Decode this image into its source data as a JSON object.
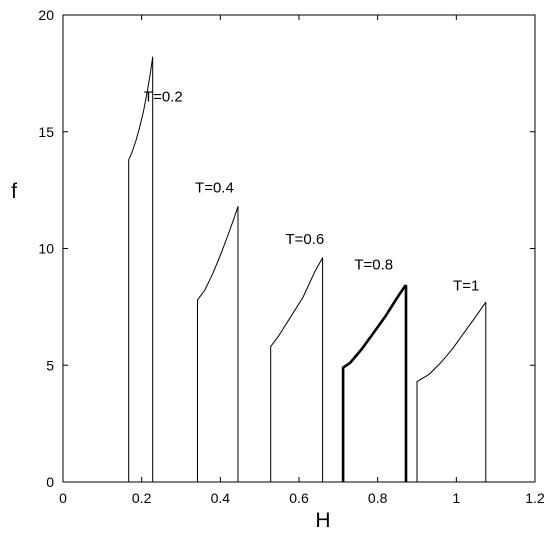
{
  "chart_data": {
    "type": "line",
    "xlabel": "H",
    "ylabel": "f",
    "xlim": [
      0,
      1.2
    ],
    "ylim": [
      0,
      20
    ],
    "xticks": [
      0,
      0.2,
      0.4,
      0.6,
      0.8,
      1,
      1.2
    ],
    "yticks": [
      0,
      5,
      10,
      15,
      20
    ],
    "xtick_labels": [
      "0",
      "0.2",
      "0.4",
      "0.6",
      "0.8",
      "1",
      "1.2"
    ],
    "ytick_labels": [
      "0",
      "5",
      "10",
      "15",
      "20"
    ],
    "grid": false,
    "series": [
      {
        "name": "T=0.2",
        "bold": false,
        "x": [
          0.167,
          0.167,
          0.175,
          0.185,
          0.195,
          0.205,
          0.215,
          0.222,
          0.228,
          0.228
        ],
        "y": [
          0,
          13.8,
          14.1,
          14.6,
          15.2,
          15.9,
          16.8,
          17.5,
          18.2,
          0
        ]
      },
      {
        "name": "T=0.4",
        "bold": false,
        "x": [
          0.342,
          0.342,
          0.36,
          0.38,
          0.4,
          0.42,
          0.435,
          0.445,
          0.445
        ],
        "y": [
          0,
          7.8,
          8.2,
          8.9,
          9.7,
          10.6,
          11.3,
          11.8,
          0
        ]
      },
      {
        "name": "T=0.6",
        "bold": false,
        "x": [
          0.528,
          0.528,
          0.55,
          0.58,
          0.61,
          0.64,
          0.66,
          0.66
        ],
        "y": [
          0,
          5.8,
          6.3,
          7.1,
          7.9,
          9.0,
          9.6,
          0
        ]
      },
      {
        "name": "T=0.8",
        "bold": true,
        "x": [
          0.712,
          0.712,
          0.73,
          0.76,
          0.79,
          0.82,
          0.85,
          0.87,
          0.872,
          0.872
        ],
        "y": [
          0,
          4.9,
          5.1,
          5.7,
          6.4,
          7.1,
          7.9,
          8.4,
          8.4,
          0
        ]
      },
      {
        "name": "T=1",
        "bold": false,
        "x": [
          0.9,
          0.9,
          0.93,
          0.96,
          0.99,
          1.02,
          1.05,
          1.075,
          1.075
        ],
        "y": [
          0,
          4.3,
          4.6,
          5.1,
          5.7,
          6.4,
          7.1,
          7.7,
          0
        ]
      }
    ],
    "annotations": [
      {
        "text": "T=0.2",
        "x": 0.255,
        "y": 16.3
      },
      {
        "text": "T=0.4",
        "x": 0.385,
        "y": 12.4
      },
      {
        "text": "T=0.6",
        "x": 0.615,
        "y": 10.2
      },
      {
        "text": "T=0.8",
        "x": 0.79,
        "y": 9.1
      },
      {
        "text": "T=1",
        "x": 1.025,
        "y": 8.2
      }
    ]
  }
}
